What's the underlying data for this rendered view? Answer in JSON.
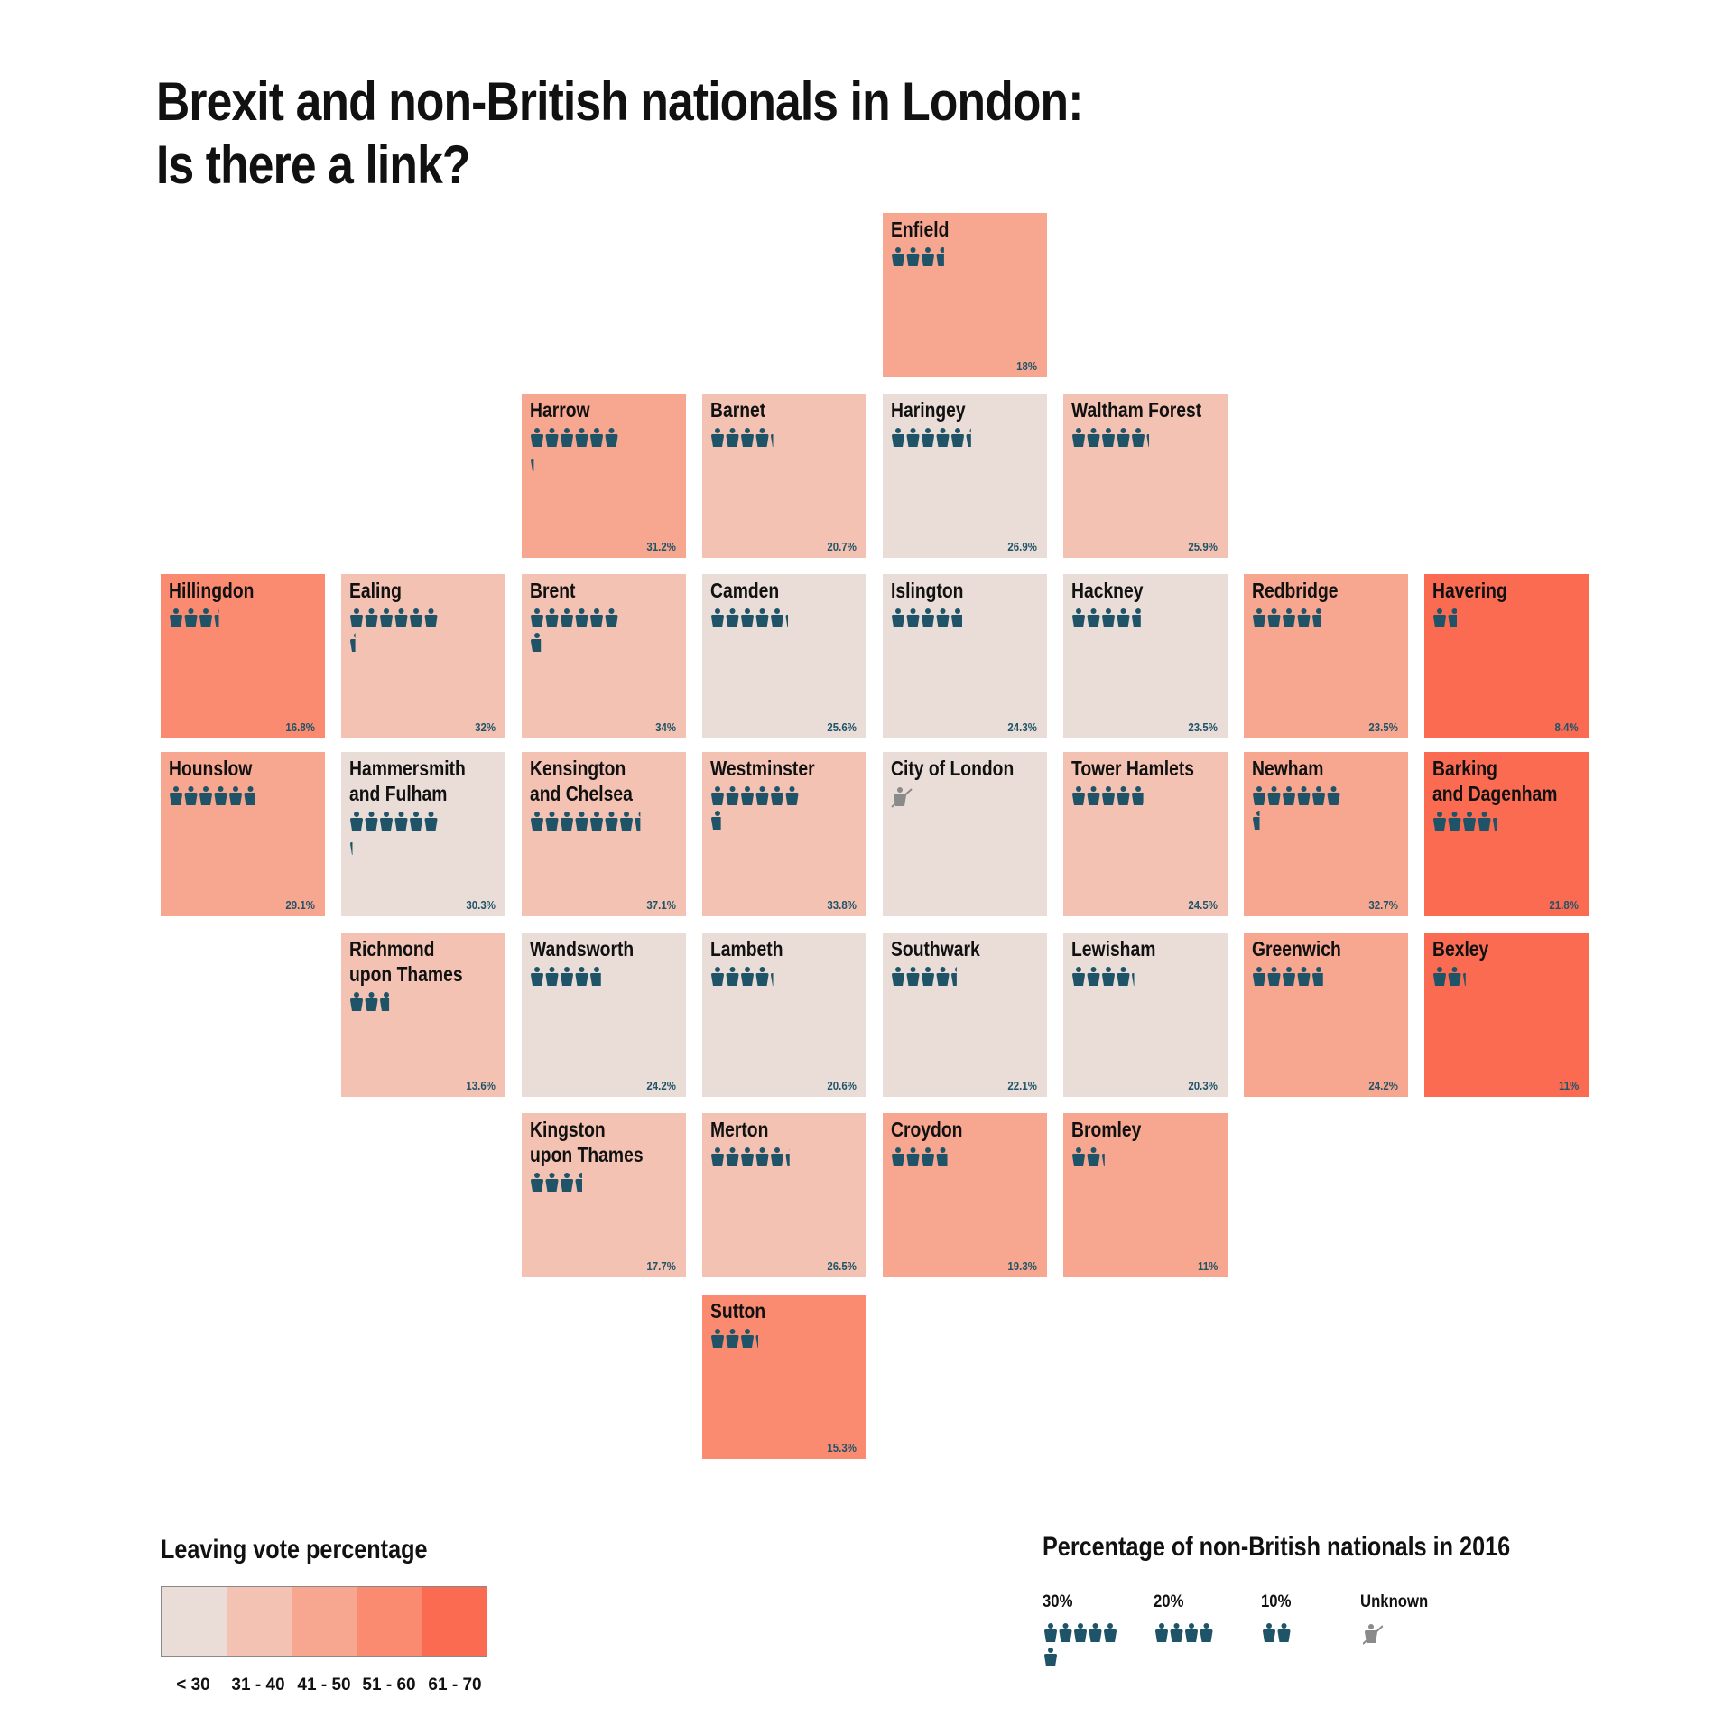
{
  "title": "Brexit and non-British nationals in London:\nIs there a link?",
  "colors": {
    "leave_scale": [
      "#eaddd8",
      "#f3c2b2",
      "#f7a68f",
      "#fa8b70",
      "#fb6b52"
    ],
    "figure": "#1f5468",
    "figure_unknown": "#8a8a8a"
  },
  "icons": {
    "person": "person-icon",
    "unknown": "unknown-person-icon"
  },
  "boroughs": [
    {
      "name": "Enfield",
      "foreign_pct_label": "18%",
      "foreign_pct": 18,
      "leave_band": 2
    },
    {
      "name": "Harrow",
      "foreign_pct_label": "31.2%",
      "foreign_pct": 31.2,
      "leave_band": 2
    },
    {
      "name": "Barnet",
      "foreign_pct_label": "20.7%",
      "foreign_pct": 20.7,
      "leave_band": 1
    },
    {
      "name": "Haringey",
      "foreign_pct_label": "26.9%",
      "foreign_pct": 26.9,
      "leave_band": 0
    },
    {
      "name": "Waltham Forest",
      "foreign_pct_label": "25.9%",
      "foreign_pct": 25.9,
      "leave_band": 1
    },
    {
      "name": "Hillingdon",
      "foreign_pct_label": "16.8%",
      "foreign_pct": 16.8,
      "leave_band": 3
    },
    {
      "name": "Ealing",
      "foreign_pct_label": "32%",
      "foreign_pct": 32,
      "leave_band": 1
    },
    {
      "name": "Brent",
      "foreign_pct_label": "34%",
      "foreign_pct": 34,
      "leave_band": 1
    },
    {
      "name": "Camden",
      "foreign_pct_label": "25.6%",
      "foreign_pct": 25.6,
      "leave_band": 0
    },
    {
      "name": "Islington",
      "foreign_pct_label": "24.3%",
      "foreign_pct": 24.3,
      "leave_band": 0
    },
    {
      "name": "Hackney",
      "foreign_pct_label": "23.5%",
      "foreign_pct": 23.5,
      "leave_band": 0
    },
    {
      "name": "Redbridge",
      "foreign_pct_label": "23.5%",
      "foreign_pct": 23.5,
      "leave_band": 2
    },
    {
      "name": "Havering",
      "foreign_pct_label": "8.4%",
      "foreign_pct": 8.4,
      "leave_band": 4
    },
    {
      "name": "Hounslow",
      "foreign_pct_label": "29.1%",
      "foreign_pct": 29.1,
      "leave_band": 2
    },
    {
      "name": "Hammersmith\nand Fulham",
      "foreign_pct_label": "30.3%",
      "foreign_pct": 30.3,
      "leave_band": 0
    },
    {
      "name": "Kensington\nand Chelsea",
      "foreign_pct_label": "37.1%",
      "foreign_pct": 37.1,
      "leave_band": 1
    },
    {
      "name": "Westminster",
      "foreign_pct_label": "33.8%",
      "foreign_pct": 33.8,
      "leave_band": 1
    },
    {
      "name": "City of London",
      "foreign_pct_label": "",
      "foreign_pct": null,
      "leave_band": 0
    },
    {
      "name": "Tower Hamlets",
      "foreign_pct_label": "24.5%",
      "foreign_pct": 24.5,
      "leave_band": 1
    },
    {
      "name": "Newham",
      "foreign_pct_label": "32.7%",
      "foreign_pct": 32.7,
      "leave_band": 2
    },
    {
      "name": "Barking\nand Dagenham",
      "foreign_pct_label": "21.8%",
      "foreign_pct": 21.8,
      "leave_band": 4
    },
    {
      "name": "Richmond\nupon Thames",
      "foreign_pct_label": "13.6%",
      "foreign_pct": 13.6,
      "leave_band": 1
    },
    {
      "name": "Wandsworth",
      "foreign_pct_label": "24.2%",
      "foreign_pct": 24.2,
      "leave_band": 0
    },
    {
      "name": "Lambeth",
      "foreign_pct_label": "20.6%",
      "foreign_pct": 20.6,
      "leave_band": 0
    },
    {
      "name": "Southwark",
      "foreign_pct_label": "22.1%",
      "foreign_pct": 22.1,
      "leave_band": 0
    },
    {
      "name": "Lewisham",
      "foreign_pct_label": "20.3%",
      "foreign_pct": 20.3,
      "leave_band": 0
    },
    {
      "name": "Greenwich",
      "foreign_pct_label": "24.2%",
      "foreign_pct": 24.2,
      "leave_band": 2
    },
    {
      "name": "Bexley",
      "foreign_pct_label": "11%",
      "foreign_pct": 11,
      "leave_band": 4
    },
    {
      "name": "Kingston\nupon Thames",
      "foreign_pct_label": "17.7%",
      "foreign_pct": 17.7,
      "leave_band": 1
    },
    {
      "name": "Merton",
      "foreign_pct_label": "26.5%",
      "foreign_pct": 26.5,
      "leave_band": 1
    },
    {
      "name": "Croydon",
      "foreign_pct_label": "19.3%",
      "foreign_pct": 19.3,
      "leave_band": 2
    },
    {
      "name": "Bromley",
      "foreign_pct_label": "11%",
      "foreign_pct": 11,
      "leave_band": 2
    },
    {
      "name": "Sutton",
      "foreign_pct_label": "15.3%",
      "foreign_pct": 15.3,
      "leave_band": 3
    }
  ],
  "legend_leave": {
    "title": "Leaving vote percentage",
    "labels": [
      "< 30",
      "31 - 40",
      "41 - 50",
      "51 - 60",
      "61 - 70"
    ]
  },
  "legend_nationals": {
    "title": "Percentage of non-British nationals in 2016",
    "keys": [
      {
        "label": "30%",
        "value": 30
      },
      {
        "label": "20%",
        "value": 20
      },
      {
        "label": "10%",
        "value": 10
      },
      {
        "label": "Unknown",
        "value": null
      }
    ]
  }
}
